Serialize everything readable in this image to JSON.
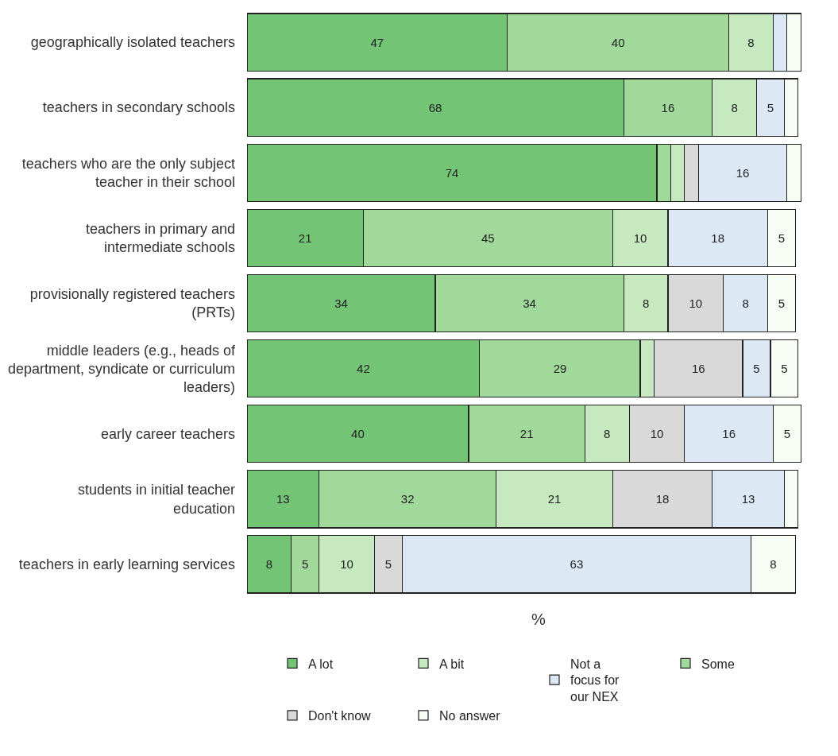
{
  "chart_data": {
    "type": "bar",
    "orientation": "horizontal",
    "stacked": true,
    "xlabel": "%",
    "tick_labels": "y",
    "grid": false,
    "legend": "bottom",
    "categories": [
      "geographically isolated teachers",
      "teachers in secondary schools",
      "teachers who are the only subject teacher in their school",
      "teachers in primary and intermediate schools",
      "provisionally registered teachers (PRTs)",
      "middle leaders (e.g., heads of department, syndicate or curriculum leaders)",
      "early career teachers",
      "students in initial teacher education",
      "teachers in early learning services"
    ],
    "series": [
      {
        "name": "A lot",
        "color": "#74c476",
        "values": [
          47,
          68,
          74,
          21,
          34,
          42,
          40,
          13,
          8
        ],
        "value_labels": [
          "47",
          "68",
          "74",
          "21",
          "34",
          "42",
          "40",
          "13",
          "8"
        ]
      },
      {
        "name": "Some",
        "color": "#a1d99b",
        "values": [
          40,
          16,
          2.5,
          45,
          34,
          29,
          21,
          32,
          5
        ],
        "value_labels": [
          "40",
          "16",
          null,
          "45",
          "34",
          "29",
          "21",
          "32",
          "5"
        ]
      },
      {
        "name": "A bit",
        "color": "#c7e9c0",
        "values": [
          8,
          8,
          2.5,
          10,
          8,
          2.5,
          8,
          21,
          10
        ],
        "value_labels": [
          "8",
          "8",
          null,
          "10",
          "8",
          null,
          "8",
          "21",
          "10"
        ]
      },
      {
        "name": "Don't know",
        "color": "#d9d9d9",
        "values": [
          0,
          0,
          2.5,
          0,
          10,
          16,
          10,
          18,
          5
        ],
        "value_labels": [
          null,
          null,
          null,
          null,
          "10",
          "16",
          "10",
          "18",
          "5"
        ]
      },
      {
        "name": "Not a focus for our NEX",
        "color": "#dce9f5",
        "values": [
          2.5,
          5,
          16,
          18,
          8,
          5,
          16,
          13,
          63
        ],
        "value_labels": [
          null,
          "5",
          "16",
          "18",
          "8",
          "5",
          "16",
          "13",
          "63"
        ]
      },
      {
        "name": "No answer",
        "color": "#f7fcf5",
        "values": [
          2.5,
          2.5,
          2.5,
          5,
          5,
          5,
          5,
          2.5,
          8
        ],
        "value_labels": [
          null,
          null,
          null,
          "5",
          "5",
          "5",
          "5",
          null,
          "8"
        ]
      }
    ]
  }
}
